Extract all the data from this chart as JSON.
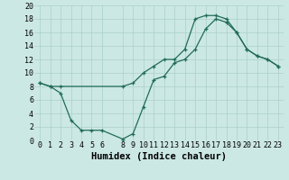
{
  "line1_x": [
    0,
    1,
    2,
    3,
    4,
    5,
    6,
    8,
    9,
    10,
    11,
    12,
    13,
    14,
    15,
    16,
    17,
    18,
    19,
    20,
    21,
    22,
    23
  ],
  "line1_y": [
    8.5,
    8,
    7,
    3,
    1.5,
    1.5,
    1.5,
    0.2,
    1,
    5,
    9,
    9.5,
    11.5,
    12,
    13.5,
    16.5,
    18,
    17.5,
    16,
    13.5,
    12.5,
    12,
    11
  ],
  "line2_x": [
    0,
    1,
    2,
    8,
    9,
    10,
    11,
    12,
    13,
    14,
    15,
    16,
    17,
    18,
    19,
    20,
    21,
    22,
    23
  ],
  "line2_y": [
    8.5,
    8,
    8,
    8,
    8.5,
    10,
    11,
    12,
    12,
    13.5,
    18,
    18.5,
    18.5,
    18,
    16,
    13.5,
    12.5,
    12,
    11
  ],
  "line_color": "#206b5a",
  "bg_color": "#cce8e4",
  "grid_major_color": "#aacfca",
  "grid_minor_color": "#bbdbd7",
  "xlabel": "Humidex (Indice chaleur)",
  "xlim": [
    -0.5,
    23.5
  ],
  "ylim": [
    0,
    20
  ],
  "xticks": [
    0,
    1,
    2,
    3,
    4,
    5,
    6,
    8,
    9,
    10,
    11,
    12,
    13,
    14,
    15,
    16,
    17,
    18,
    19,
    20,
    21,
    22,
    23
  ],
  "yticks": [
    0,
    2,
    4,
    6,
    8,
    10,
    12,
    14,
    16,
    18,
    20
  ],
  "xlabel_fontsize": 7.5,
  "tick_fontsize": 6
}
